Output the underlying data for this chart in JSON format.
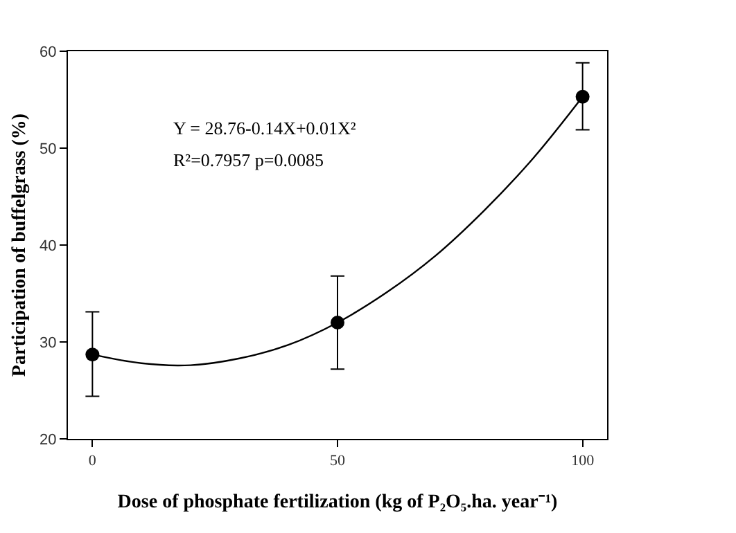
{
  "chart_data": {
    "type": "scatter",
    "xlabel": "Dose of phosphate fertilization (kg of P₂O₅.ha. year⁻¹)",
    "ylabel": "Participation of buffelgrass (%)",
    "xlim": [
      -5,
      105
    ],
    "xticks": [
      0,
      50,
      100
    ],
    "ylim": [
      20,
      60
    ],
    "yticks": [
      20,
      30,
      40,
      50,
      60
    ],
    "grid": false,
    "annotations": [
      "Y = 28.76-0.14X+0.01X²",
      "R²=0.7957 p=0.0085"
    ],
    "series": [
      {
        "type": "line",
        "color": "#000000",
        "marker": "none",
        "line_style": "solid",
        "x": [
          0,
          10,
          20,
          30,
          40,
          50,
          60,
          70,
          80,
          90,
          100
        ],
        "values": [
          28.7,
          27.8,
          27.6,
          28.3,
          29.7,
          32.0,
          35.1,
          38.9,
          43.6,
          49.0,
          55.3
        ]
      },
      {
        "type": "scatter",
        "color": "#000000",
        "marker": "circle",
        "x": [
          0,
          50,
          100
        ],
        "values": [
          28.7,
          32.0,
          55.3
        ],
        "errors": [
          [
            24.4,
            33.1
          ],
          [
            27.2,
            36.8
          ],
          [
            51.9,
            58.8
          ]
        ]
      }
    ]
  }
}
